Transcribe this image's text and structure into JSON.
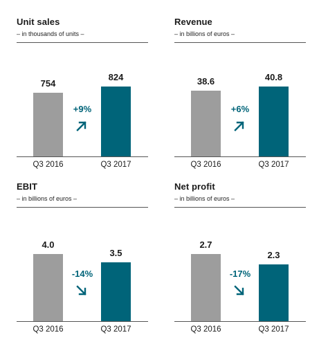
{
  "colors": {
    "bar_2016": "#9d9d9d",
    "bar_2017": "#006479",
    "change_text": "#006479"
  },
  "chart_data": [
    {
      "type": "bar",
      "title": "Unit sales",
      "subtitle": "– in thousands of units –",
      "categories": [
        "Q3 2016",
        "Q3 2017"
      ],
      "values": [
        754,
        824
      ],
      "value_labels": [
        "754",
        "824"
      ],
      "change": "+9%",
      "change_direction": "up",
      "change_icon": "arrow-up-right-icon",
      "ylim": [
        0,
        900
      ]
    },
    {
      "type": "bar",
      "title": "Revenue",
      "subtitle": "– in billions of euros –",
      "categories": [
        "Q3 2016",
        "Q3 2017"
      ],
      "values": [
        38.6,
        40.8
      ],
      "value_labels": [
        "38.6",
        "40.8"
      ],
      "change": "+6%",
      "change_direction": "up",
      "change_icon": "arrow-up-right-icon",
      "ylim": [
        0,
        44.6
      ]
    },
    {
      "type": "bar",
      "title": "EBIT",
      "subtitle": "– in billions of euros –",
      "categories": [
        "Q3 2016",
        "Q3 2017"
      ],
      "values": [
        4.0,
        3.5
      ],
      "value_labels": [
        "4.0",
        "3.5"
      ],
      "change": "-14%",
      "change_direction": "down",
      "change_icon": "arrow-down-right-icon",
      "ylim": [
        0,
        4.55
      ]
    },
    {
      "type": "bar",
      "title": "Net profit",
      "subtitle": "– in billions of euros –",
      "categories": [
        "Q3 2016",
        "Q3 2017"
      ],
      "values": [
        2.7,
        2.3
      ],
      "value_labels": [
        "2.7",
        "2.3"
      ],
      "change": "-17%",
      "change_direction": "down",
      "change_icon": "arrow-down-right-icon",
      "ylim": [
        0,
        3.07
      ]
    }
  ]
}
